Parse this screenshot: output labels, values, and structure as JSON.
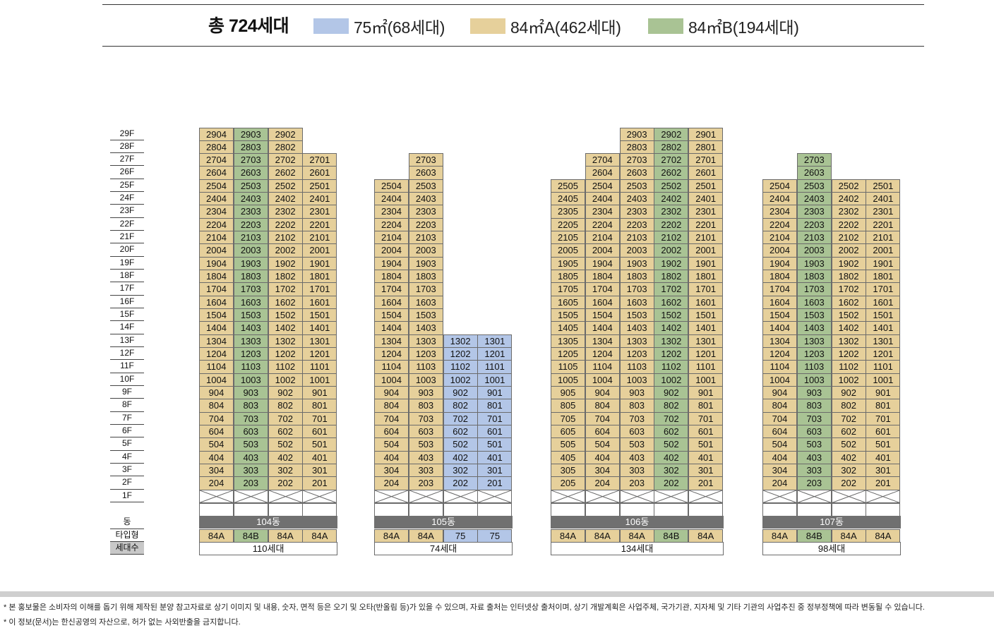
{
  "legend": {
    "total": "총 724세대",
    "items": [
      {
        "key": "75",
        "label": "75㎡(68세대)",
        "color": "#b3c6e7"
      },
      {
        "key": "84A",
        "label": "84㎡A(462세대)",
        "color": "#e6d09b"
      },
      {
        "key": "84B",
        "label": "84㎡B(194세대)",
        "color": "#a9c394"
      }
    ]
  },
  "floors": [
    "29F",
    "28F",
    "27F",
    "26F",
    "25F",
    "24F",
    "23F",
    "22F",
    "21F",
    "20F",
    "19F",
    "18F",
    "17F",
    "16F",
    "15F",
    "14F",
    "13F",
    "12F",
    "11F",
    "10F",
    "9F",
    "8F",
    "7F",
    "6F",
    "5F",
    "4F",
    "3F",
    "2F",
    "1F"
  ],
  "row_labels": {
    "dong": "동",
    "type": "타입형",
    "households": "세대수"
  },
  "buildings": [
    {
      "name": "104동",
      "households": "110세대",
      "columns": [
        {
          "line": "04",
          "type": "84A",
          "top_floor": 29
        },
        {
          "line": "03",
          "type": "84B",
          "top_floor": 29
        },
        {
          "line": "02",
          "type": "84A",
          "top_floor": 29
        },
        {
          "line": "01",
          "type": "84A",
          "top_floor": 27
        }
      ]
    },
    {
      "name": "105동",
      "households": "74세대",
      "columns": [
        {
          "line": "04",
          "type": "84A",
          "top_floor": 25
        },
        {
          "line": "03",
          "type": "84A",
          "top_floor": 27
        },
        {
          "line": "02",
          "type": "75",
          "top_floor": 13
        },
        {
          "line": "01",
          "type": "75",
          "top_floor": 13
        }
      ]
    },
    {
      "name": "106동",
      "households": "134세대",
      "columns": [
        {
          "line": "05",
          "type": "84A",
          "top_floor": 25
        },
        {
          "line": "04",
          "type": "84A",
          "top_floor": 27
        },
        {
          "line": "03",
          "type": "84A",
          "top_floor": 29
        },
        {
          "line": "02",
          "type": "84B",
          "top_floor": 29
        },
        {
          "line": "01",
          "type": "84A",
          "top_floor": 29
        }
      ]
    },
    {
      "name": "107동",
      "households": "98세대",
      "columns": [
        {
          "line": "04",
          "type": "84A",
          "top_floor": 25
        },
        {
          "line": "03",
          "type": "84B",
          "top_floor": 27
        },
        {
          "line": "02",
          "type": "84A",
          "top_floor": 25
        },
        {
          "line": "01",
          "type": "84A",
          "top_floor": 25
        }
      ]
    }
  ],
  "notes": [
    "* 본 홍보물은 소비자의 이해를 돕기 위해 제작된 분양 참고자료로 상기 이미지 및 내용, 숫자, 면적 등은 오기 및 오타(반올림 등)가 있을 수 있으며, 자료 출처는 인터넷상 출처이며, 상기 개발계획은 사업주체, 국가기관, 지자체 및 기타 기관의 사업추진 중 정부정책에 따라 변동될 수 있습니다.",
    "* 이 정보(문서)는 한신공영의 자산으로, 허가 없는 사외반출을 금지합니다."
  ]
}
